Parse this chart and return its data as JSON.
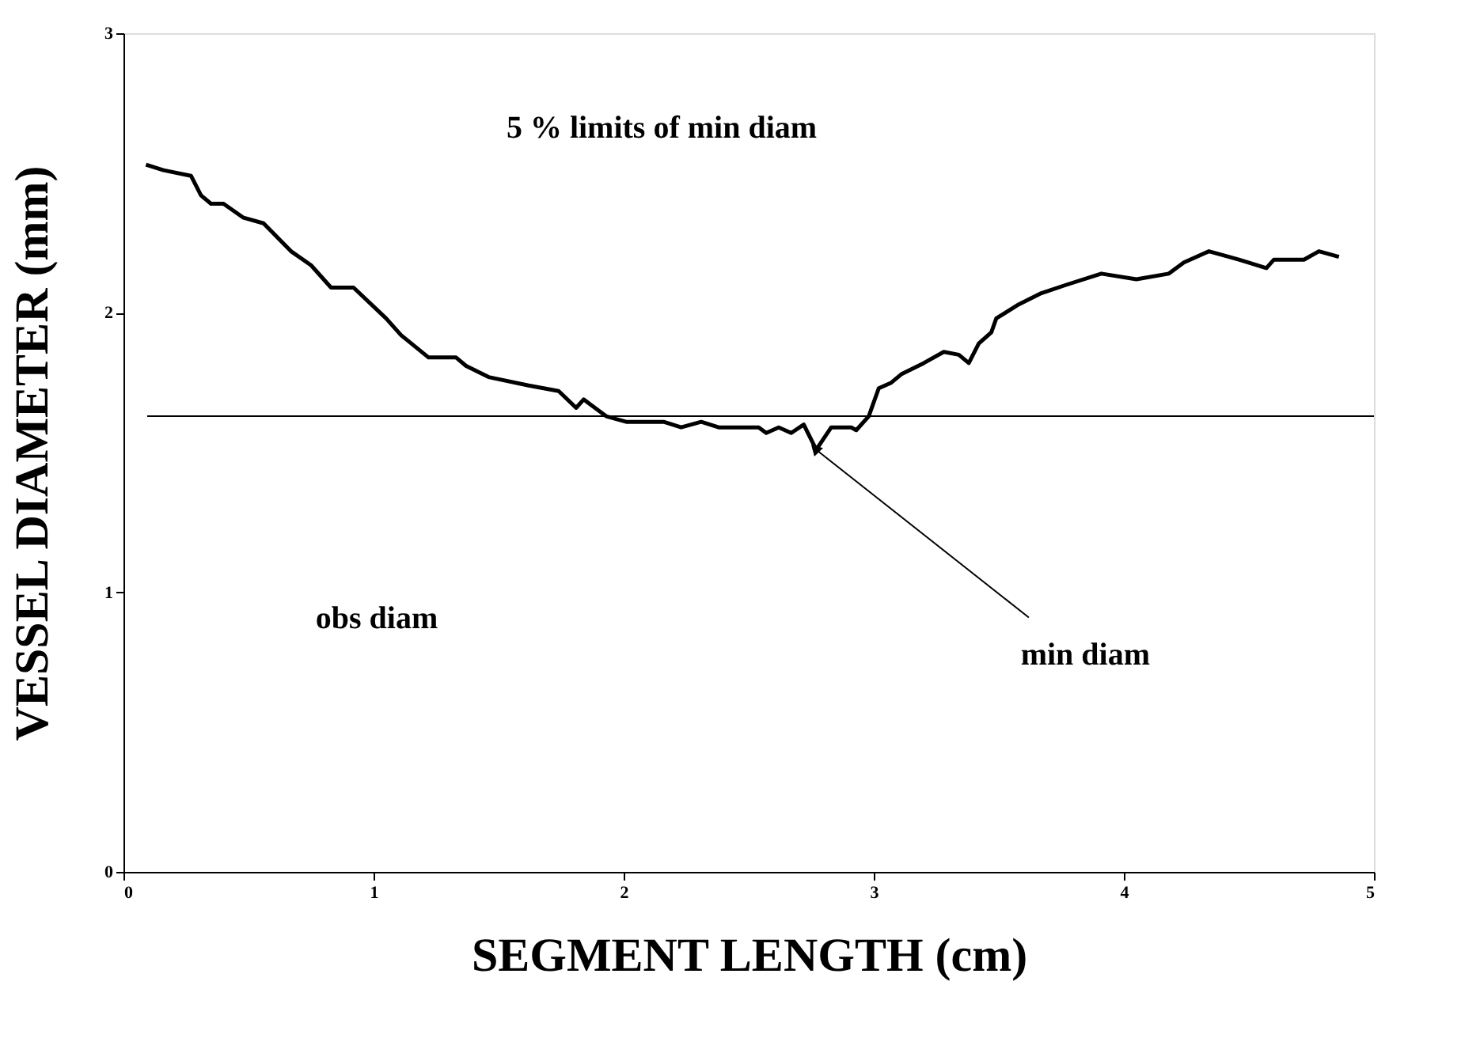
{
  "chart_data": {
    "type": "line",
    "xlabel": "SEGMENT LENGTH (cm)",
    "ylabel": "VESSEL DIAMETER (mm)",
    "x": [
      0.09,
      0.16,
      0.27,
      0.31,
      0.35,
      0.4,
      0.48,
      0.56,
      0.67,
      0.75,
      0.83,
      0.92,
      1.05,
      1.11,
      1.22,
      1.33,
      1.37,
      1.46,
      1.62,
      1.74,
      1.81,
      1.84,
      1.93,
      2.01,
      2.16,
      2.23,
      2.31,
      2.38,
      2.44,
      2.54,
      2.57,
      2.62,
      2.67,
      2.72,
      2.77,
      2.83,
      2.91,
      2.93,
      2.98,
      3.02,
      3.07,
      3.11,
      3.2,
      3.28,
      3.34,
      3.38,
      3.42,
      3.47,
      3.49,
      3.58,
      3.67,
      3.77,
      3.91,
      4.05,
      4.18,
      4.24,
      4.34,
      4.46,
      4.57,
      4.6,
      4.72,
      4.78,
      4.86
    ],
    "series": [
      {
        "color": "#000000",
        "values": [
          2.53,
          2.51,
          2.49,
          2.42,
          2.39,
          2.39,
          2.34,
          2.32,
          2.22,
          2.17,
          2.09,
          2.09,
          1.98,
          1.92,
          1.84,
          1.84,
          1.81,
          1.77,
          1.74,
          1.72,
          1.66,
          1.69,
          1.63,
          1.61,
          1.61,
          1.59,
          1.61,
          1.59,
          1.59,
          1.59,
          1.57,
          1.59,
          1.57,
          1.6,
          1.51,
          1.59,
          1.59,
          1.58,
          1.63,
          1.73,
          1.75,
          1.78,
          1.82,
          1.86,
          1.85,
          1.82,
          1.89,
          1.93,
          1.98,
          2.03,
          2.07,
          2.1,
          2.14,
          2.12,
          2.14,
          2.18,
          2.22,
          2.19,
          2.16,
          2.19,
          2.19,
          2.22,
          2.2
        ]
      }
    ],
    "xlim": [
      0,
      5
    ],
    "ylim": [
      0,
      3
    ],
    "xticks": [
      0,
      1,
      2,
      3,
      4,
      5
    ],
    "yticks": [
      0,
      1,
      2,
      3
    ],
    "ref_lines": [
      {
        "axis": "y",
        "value": 1.63,
        "color": "#000000",
        "line_style": "solid"
      }
    ],
    "annotations": [
      "5 % limits of min diam",
      "obs diam",
      {
        "text": "min diam",
        "x": 2.77,
        "y": 1.51
      }
    ],
    "grid": false,
    "marker": "none",
    "line_style": "solid"
  }
}
